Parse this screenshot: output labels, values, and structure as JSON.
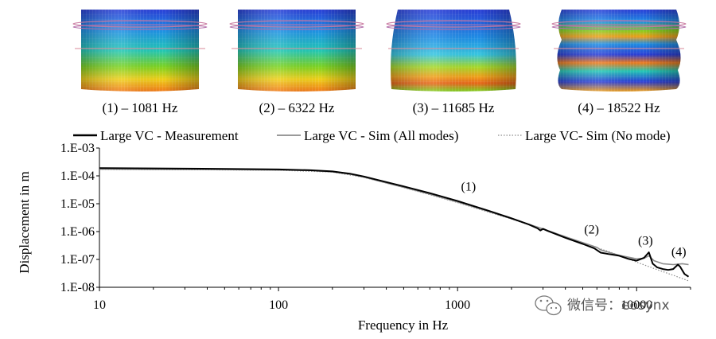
{
  "mode_shapes": [
    {
      "caption": "(1) – 1081 Hz",
      "shape": "uniform"
    },
    {
      "caption": "(2) – 6322 Hz",
      "shape": "uniform"
    },
    {
      "caption": "(3) – 11685 Hz",
      "shape": "bulge"
    },
    {
      "caption": "(4) – 18522 Hz",
      "shape": "wavy"
    }
  ],
  "chart_data": {
    "type": "line",
    "xlabel": "Frequency in Hz",
    "ylabel": "Displacement in m",
    "x_scale": "log",
    "y_scale": "log",
    "xlim": [
      10,
      20000
    ],
    "ylim": [
      1e-08,
      0.001
    ],
    "x_ticks": [
      {
        "value": 10,
        "label": "10"
      },
      {
        "value": 100,
        "label": "100"
      },
      {
        "value": 1000,
        "label": "1000"
      },
      {
        "value": 10000,
        "label": "10000"
      }
    ],
    "y_ticks": [
      {
        "value": 0.001,
        "label": "1.E-03"
      },
      {
        "value": 0.0001,
        "label": "1.E-04"
      },
      {
        "value": 1e-05,
        "label": "1.E-05"
      },
      {
        "value": 1e-06,
        "label": "1.E-06"
      },
      {
        "value": 1e-07,
        "label": "1.E-07"
      },
      {
        "value": 1e-08,
        "label": "1.E-08"
      }
    ],
    "grid": false,
    "legend_position": "top",
    "series": [
      {
        "name": "Large VC - Measurement",
        "color": "#000000",
        "style": "solid",
        "points": [
          [
            10,
            0.00019
          ],
          [
            20,
            0.000185
          ],
          [
            50,
            0.000178
          ],
          [
            100,
            0.00017
          ],
          [
            150,
            0.00016
          ],
          [
            200,
            0.000145
          ],
          [
            250,
            0.00012
          ],
          [
            300,
            9.5e-05
          ],
          [
            400,
            6e-05
          ],
          [
            500,
            4.2e-05
          ],
          [
            700,
            2.4e-05
          ],
          [
            1000,
            1.25e-05
          ],
          [
            1500,
            5.5e-06
          ],
          [
            2000,
            3e-06
          ],
          [
            2500,
            1.8e-06
          ],
          [
            2800,
            1.3e-06
          ],
          [
            2900,
            1.1e-06
          ],
          [
            3000,
            1.25e-06
          ],
          [
            3200,
            1.05e-06
          ],
          [
            4000,
            6e-07
          ],
          [
            5000,
            3.6e-07
          ],
          [
            5800,
            2.5e-07
          ],
          [
            6300,
            1.75e-07
          ],
          [
            7000,
            1.55e-07
          ],
          [
            8000,
            1.35e-07
          ],
          [
            9000,
            1.05e-07
          ],
          [
            10000,
            9e-08
          ],
          [
            11000,
            1.15e-07
          ],
          [
            11700,
            1.8e-07
          ],
          [
            12300,
            7e-08
          ],
          [
            13000,
            5.2e-08
          ],
          [
            14000,
            4.5e-08
          ],
          [
            15000,
            4.2e-08
          ],
          [
            16000,
            4.5e-08
          ],
          [
            17000,
            6.5e-08
          ],
          [
            17500,
            5.5e-08
          ],
          [
            18500,
            3e-08
          ],
          [
            19500,
            2.4e-08
          ]
        ]
      },
      {
        "name": "Large VC - Sim (All modes)",
        "color": "#8c8c8c",
        "style": "solid",
        "points": [
          [
            10,
            0.000175
          ],
          [
            20,
            0.000172
          ],
          [
            50,
            0.000168
          ],
          [
            100,
            0.000162
          ],
          [
            150,
            0.000155
          ],
          [
            200,
            0.00014
          ],
          [
            250,
            0.000115
          ],
          [
            300,
            9e-05
          ],
          [
            400,
            5.6e-05
          ],
          [
            500,
            3.9e-05
          ],
          [
            700,
            2.2e-05
          ],
          [
            1000,
            1.15e-05
          ],
          [
            1500,
            5.2e-06
          ],
          [
            2000,
            2.9e-06
          ],
          [
            3000,
            1.25e-06
          ],
          [
            4000,
            6.5e-07
          ],
          [
            5000,
            4e-07
          ],
          [
            6000,
            2.7e-07
          ],
          [
            6300,
            2.2e-07
          ],
          [
            7000,
            1.8e-07
          ],
          [
            8000,
            1.4e-07
          ],
          [
            9000,
            1.2e-07
          ],
          [
            10000,
            1.05e-07
          ],
          [
            11000,
            1.1e-07
          ],
          [
            11700,
            1.35e-07
          ],
          [
            12500,
            9e-08
          ],
          [
            14000,
            7e-08
          ],
          [
            16000,
            6.5e-08
          ],
          [
            18000,
            7e-08
          ],
          [
            19500,
            6.5e-08
          ]
        ]
      },
      {
        "name": "Large VC- Sim  (No mode)",
        "color": "#8c8c8c",
        "style": "dotted",
        "points": [
          [
            10,
            0.00017
          ],
          [
            50,
            0.000164
          ],
          [
            100,
            0.000158
          ],
          [
            200,
            0.000137
          ],
          [
            300,
            8.8e-05
          ],
          [
            500,
            3.8e-05
          ],
          [
            700,
            2.1e-05
          ],
          [
            1000,
            1.1e-05
          ],
          [
            2000,
            2.8e-06
          ],
          [
            3000,
            1.2e-06
          ],
          [
            5000,
            3.8e-07
          ],
          [
            7000,
            1.9e-07
          ],
          [
            10000,
            8e-08
          ],
          [
            13000,
            4.3e-08
          ],
          [
            16000,
            2.7e-08
          ],
          [
            19500,
            1.7e-08
          ]
        ]
      }
    ],
    "annotations": [
      {
        "text": "(1)",
        "x": 1150,
        "y": 3e-05
      },
      {
        "text": "(2)",
        "x": 5600,
        "y": 8.5e-07
      },
      {
        "text": "(3)",
        "x": 11200,
        "y": 3.4e-07
      },
      {
        "text": "(4)",
        "x": 17200,
        "y": 1.35e-07
      }
    ]
  },
  "watermark": {
    "icon": "wechat-icon",
    "text": "微信号：eosynx"
  }
}
